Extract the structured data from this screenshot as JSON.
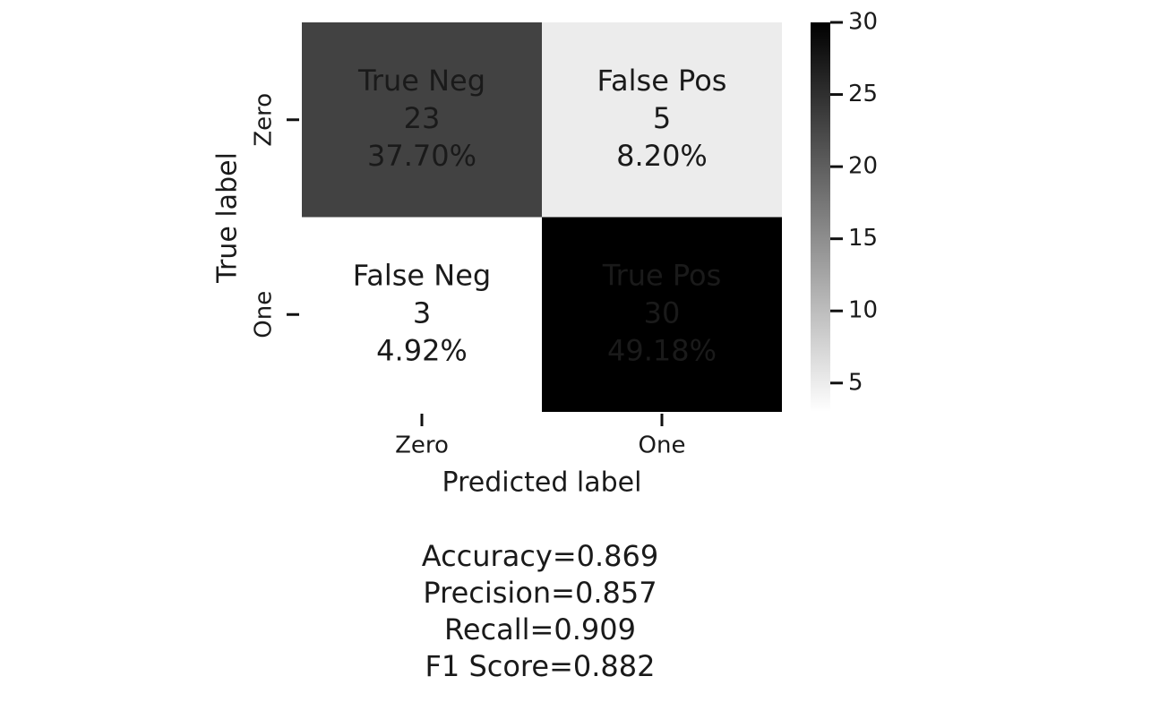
{
  "chart_data": {
    "type": "heatmap",
    "xlabel": "Predicted label",
    "ylabel": "True label",
    "x_categories": [
      "Zero",
      "One"
    ],
    "y_categories": [
      "Zero",
      "One"
    ],
    "values": [
      [
        23,
        5
      ],
      [
        3,
        30
      ]
    ],
    "cell_names": [
      [
        "True Neg",
        "False Pos"
      ],
      [
        "False Neg",
        "True Pos"
      ]
    ],
    "cell_percent_labels": [
      [
        "37.70%",
        "8.20%"
      ],
      [
        "4.92%",
        "49.18%"
      ]
    ],
    "colormap": [
      "#ffffff",
      "#000000"
    ],
    "clim": [
      3,
      30
    ],
    "cticks": [
      5,
      10,
      15,
      20,
      25,
      30
    ],
    "metrics": [
      "Accuracy=0.869",
      "Precision=0.857",
      "Recall=0.909",
      "F1 Score=0.882"
    ]
  }
}
